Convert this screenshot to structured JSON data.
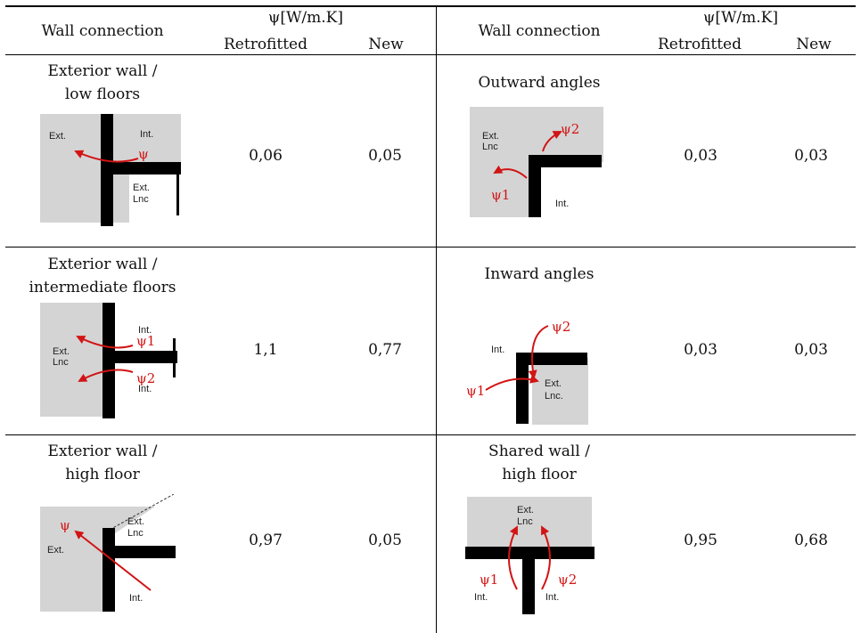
{
  "header": {
    "col_wall": "Wall connection",
    "col_psi": "ψ[W/m.K]",
    "col_retrofitted": "Retrofitted",
    "col_new": "New"
  },
  "rows": [
    {
      "left": {
        "name_line1": "Exterior wall /",
        "name_line2": "low floors",
        "retrofitted": "0,06",
        "new": "0,05",
        "labels": {
          "ext": "Ext.",
          "int": "Int.",
          "ext2": "Ext.",
          "lnc": "Lnc",
          "psi": "ψ"
        }
      },
      "right": {
        "name_line1": "Outward angles",
        "name_line2": "",
        "retrofitted": "0,03",
        "new": "0,03",
        "labels": {
          "ext": "Ext.",
          "lnc": "Lnc",
          "int": "Int.",
          "psi1": "ψ1",
          "psi2": "ψ2"
        }
      }
    },
    {
      "left": {
        "name_line1": "Exterior wall /",
        "name_line2": "intermediate floors",
        "retrofitted": "1,1",
        "new": "0,77",
        "labels": {
          "ext": "Ext.",
          "lnc": "Lnc",
          "int1": "Int.",
          "int2": "Int.",
          "psi1": "ψ1",
          "psi2": "ψ2"
        }
      },
      "right": {
        "name_line1": "Inward angles",
        "name_line2": "",
        "retrofitted": "0,03",
        "new": "0,03",
        "labels": {
          "int": "Int.",
          "ext": "Ext.",
          "lnc": "Lnc.",
          "psi1": "ψ1",
          "psi2": "ψ2"
        }
      }
    },
    {
      "left": {
        "name_line1": "Exterior wall /",
        "name_line2": "high floor",
        "retrofitted": "0,97",
        "new": "0,05",
        "labels": {
          "ext": "Ext.",
          "ext2": "Ext.",
          "lnc": "Lnc",
          "int": "Int.",
          "psi": "ψ"
        }
      },
      "right": {
        "name_line1": "Shared wall /",
        "name_line2": "high floor",
        "retrofitted": "0,95",
        "new": "0,68",
        "labels": {
          "ext": "Ext.",
          "lnc": "Lnc",
          "int1": "Int.",
          "int2": "Int.",
          "psi1": "ψ1",
          "psi2": "ψ2"
        }
      }
    }
  ],
  "colors": {
    "wall": "#000000",
    "shade": "#d4d4d4",
    "arrow": "#d21414"
  }
}
